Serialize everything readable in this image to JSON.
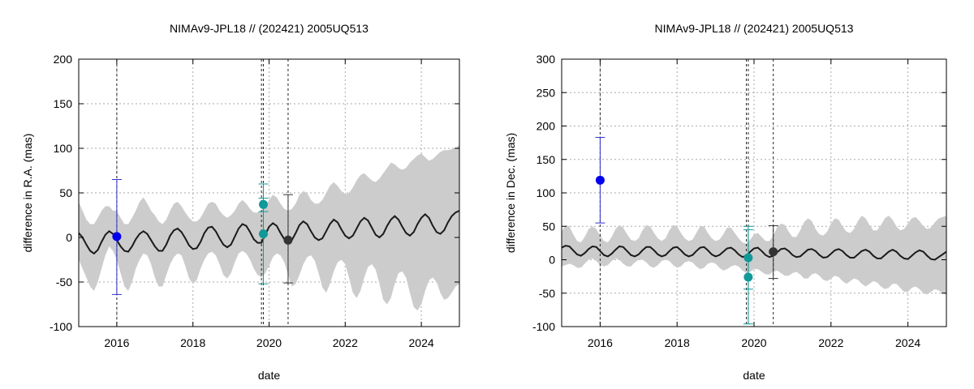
{
  "chart_data": [
    {
      "type": "line",
      "title": "NIMAv9-JPL18 // (202421) 2005UQ513",
      "xlabel": "date",
      "ylabel": "difference in R.A. (mas)",
      "xlim": [
        2015.0,
        2025.0
      ],
      "ylim": [
        -100,
        200
      ],
      "xticks": [
        2016,
        2018,
        2020,
        2022,
        2024
      ],
      "yticks": [
        -100,
        -50,
        0,
        50,
        100,
        150,
        200
      ],
      "grid": true,
      "vlines": [
        2016.0,
        2019.8,
        2019.85,
        2020.5
      ],
      "model_curve": {
        "color": "#1a1a1a",
        "x": [
          2015.0,
          2015.1,
          2015.2,
          2015.3,
          2015.4,
          2015.5,
          2015.6,
          2015.7,
          2015.8,
          2015.9,
          2016.0,
          2016.1,
          2016.2,
          2016.3,
          2016.4,
          2016.5,
          2016.6,
          2016.7,
          2016.8,
          2016.9,
          2017.0,
          2017.1,
          2017.2,
          2017.3,
          2017.4,
          2017.5,
          2017.6,
          2017.7,
          2017.8,
          2017.9,
          2018.0,
          2018.1,
          2018.2,
          2018.3,
          2018.4,
          2018.5,
          2018.6,
          2018.7,
          2018.8,
          2018.9,
          2019.0,
          2019.1,
          2019.2,
          2019.3,
          2019.4,
          2019.5,
          2019.6,
          2019.7,
          2019.8,
          2019.9,
          2020.0,
          2020.1,
          2020.2,
          2020.3,
          2020.4,
          2020.5,
          2020.6,
          2020.7,
          2020.8,
          2020.9,
          2021.0,
          2021.1,
          2021.2,
          2021.3,
          2021.4,
          2021.5,
          2021.6,
          2021.7,
          2021.8,
          2021.9,
          2022.0,
          2022.1,
          2022.2,
          2022.3,
          2022.4,
          2022.5,
          2022.6,
          2022.7,
          2022.8,
          2022.9,
          2023.0,
          2023.1,
          2023.2,
          2023.3,
          2023.4,
          2023.5,
          2023.6,
          2023.7,
          2023.8,
          2023.9,
          2024.0,
          2024.1,
          2024.2,
          2024.3,
          2024.4,
          2024.5,
          2024.6,
          2024.7,
          2024.8,
          2024.9,
          2025.0
        ],
        "y": [
          5,
          0,
          -8,
          -15,
          -18,
          -14,
          -5,
          3,
          7,
          4,
          -3,
          -10,
          -15,
          -16,
          -10,
          -2,
          4,
          7,
          4,
          -3,
          -10,
          -15,
          -15,
          -8,
          2,
          8,
          10,
          6,
          -1,
          -9,
          -13,
          -12,
          -5,
          5,
          11,
          12,
          7,
          -1,
          -8,
          -11,
          -8,
          1,
          10,
          15,
          13,
          6,
          -2,
          -6,
          -6,
          3,
          12,
          16,
          13,
          5,
          -2,
          -4,
          -3,
          5,
          14,
          18,
          15,
          7,
          0,
          -3,
          -1,
          7,
          15,
          20,
          17,
          9,
          2,
          -1,
          2,
          10,
          18,
          22,
          19,
          11,
          3,
          0,
          4,
          13,
          20,
          24,
          20,
          12,
          5,
          2,
          6,
          15,
          22,
          26,
          22,
          13,
          6,
          4,
          8,
          17,
          24,
          28,
          30
        ]
      },
      "uncertainty_band": {
        "color": "#cccccc",
        "upper": [
          40,
          30,
          20,
          15,
          15,
          22,
          30,
          35,
          35,
          30,
          30,
          22,
          15,
          15,
          22,
          30,
          40,
          45,
          38,
          30,
          25,
          18,
          15,
          20,
          30,
          38,
          40,
          35,
          28,
          22,
          18,
          18,
          22,
          30,
          38,
          40,
          38,
          30,
          25,
          22,
          25,
          30,
          38,
          42,
          38,
          32,
          28,
          28,
          30,
          35,
          42,
          48,
          45,
          38,
          32,
          30,
          32,
          38,
          48,
          52,
          50,
          42,
          38,
          38,
          42,
          50,
          58,
          62,
          58,
          52,
          48,
          50,
          56,
          64,
          70,
          72,
          68,
          64,
          62,
          66,
          72,
          78,
          84,
          82,
          78,
          76,
          78,
          84,
          88,
          92,
          94,
          90,
          86,
          88,
          92,
          96,
          98,
          98,
          99,
          100,
          104
        ],
        "lower": [
          -25,
          -35,
          -45,
          -55,
          -60,
          -50,
          -35,
          -20,
          -10,
          -15,
          -25,
          -40,
          -55,
          -60,
          -50,
          -35,
          -25,
          -18,
          -20,
          -30,
          -45,
          -55,
          -55,
          -42,
          -30,
          -22,
          -18,
          -20,
          -32,
          -46,
          -52,
          -48,
          -35,
          -25,
          -18,
          -16,
          -20,
          -30,
          -42,
          -46,
          -40,
          -28,
          -18,
          -15,
          -18,
          -25,
          -35,
          -42,
          -45,
          -40,
          -32,
          -22,
          -18,
          -20,
          -28,
          -42,
          -55,
          -52,
          -42,
          -30,
          -22,
          -20,
          -26,
          -40,
          -56,
          -62,
          -52,
          -38,
          -28,
          -25,
          -30,
          -45,
          -62,
          -68,
          -60,
          -45,
          -33,
          -30,
          -36,
          -52,
          -70,
          -75,
          -68,
          -52,
          -40,
          -38,
          -45,
          -62,
          -78,
          -82,
          -75,
          -60,
          -48,
          -45,
          -50,
          -62,
          -70,
          -68,
          -62,
          -55,
          -52
        ]
      },
      "observations": [
        {
          "x": 2016.0,
          "y": 1,
          "err_low": 65,
          "err_high": 64,
          "color": "#0000ee",
          "err_color": "#3333cc"
        },
        {
          "x": 2019.85,
          "y": 37,
          "err_low": 8,
          "err_high": 23,
          "color": "#119999",
          "err_color": "#119999"
        },
        {
          "x": 2019.85,
          "y": 4,
          "err_low": 56,
          "err_high": 40,
          "color": "#119999",
          "err_color": "#119999"
        },
        {
          "x": 2020.5,
          "y": -3,
          "err_low": 48,
          "err_high": 51,
          "color": "#333333",
          "err_color": "#333333"
        }
      ]
    },
    {
      "type": "line",
      "title": "NIMAv9-JPL18 // (202421) 2005UQ513",
      "xlabel": "date",
      "ylabel": "difference in Dec. (mas)",
      "xlim": [
        2015.0,
        2025.0
      ],
      "ylim": [
        -100,
        300
      ],
      "xticks": [
        2016,
        2018,
        2020,
        2022,
        2024
      ],
      "yticks": [
        -100,
        -50,
        0,
        50,
        100,
        150,
        200,
        250,
        300
      ],
      "grid": true,
      "vlines": [
        2016.0,
        2019.8,
        2019.85,
        2020.5
      ],
      "model_curve": {
        "color": "#1a1a1a",
        "x": [
          2015.0,
          2015.1,
          2015.2,
          2015.3,
          2015.4,
          2015.5,
          2015.6,
          2015.7,
          2015.8,
          2015.9,
          2016.0,
          2016.1,
          2016.2,
          2016.3,
          2016.4,
          2016.5,
          2016.6,
          2016.7,
          2016.8,
          2016.9,
          2017.0,
          2017.1,
          2017.2,
          2017.3,
          2017.4,
          2017.5,
          2017.6,
          2017.7,
          2017.8,
          2017.9,
          2018.0,
          2018.1,
          2018.2,
          2018.3,
          2018.4,
          2018.5,
          2018.6,
          2018.7,
          2018.8,
          2018.9,
          2019.0,
          2019.1,
          2019.2,
          2019.3,
          2019.4,
          2019.5,
          2019.6,
          2019.7,
          2019.8,
          2019.9,
          2020.0,
          2020.1,
          2020.2,
          2020.3,
          2020.4,
          2020.5,
          2020.6,
          2020.7,
          2020.8,
          2020.9,
          2021.0,
          2021.1,
          2021.2,
          2021.3,
          2021.4,
          2021.5,
          2021.6,
          2021.7,
          2021.8,
          2021.9,
          2022.0,
          2022.1,
          2022.2,
          2022.3,
          2022.4,
          2022.5,
          2022.6,
          2022.7,
          2022.8,
          2022.9,
          2023.0,
          2023.1,
          2023.2,
          2023.3,
          2023.4,
          2023.5,
          2023.6,
          2023.7,
          2023.8,
          2023.9,
          2024.0,
          2024.1,
          2024.2,
          2024.3,
          2024.4,
          2024.5,
          2024.6,
          2024.7,
          2024.8,
          2024.9,
          2025.0
        ],
        "y": [
          18,
          21,
          20,
          14,
          8,
          6,
          10,
          16,
          20,
          19,
          13,
          7,
          5,
          9,
          15,
          20,
          19,
          13,
          7,
          5,
          8,
          14,
          19,
          19,
          14,
          8,
          5,
          7,
          13,
          18,
          19,
          14,
          8,
          5,
          7,
          13,
          18,
          19,
          14,
          8,
          5,
          7,
          12,
          17,
          18,
          14,
          8,
          4,
          6,
          12,
          17,
          18,
          13,
          7,
          4,
          6,
          11,
          16,
          17,
          13,
          7,
          4,
          5,
          10,
          15,
          16,
          13,
          7,
          3,
          4,
          9,
          14,
          16,
          13,
          7,
          3,
          3,
          8,
          13,
          15,
          12,
          6,
          2,
          2,
          7,
          12,
          15,
          12,
          6,
          2,
          1,
          6,
          11,
          14,
          12,
          6,
          1,
          0,
          4,
          8,
          12
        ]
      },
      "uncertainty_band": {
        "color": "#cccccc",
        "upper": [
          42,
          52,
          50,
          38,
          28,
          26,
          34,
          46,
          50,
          46,
          36,
          28,
          26,
          34,
          46,
          52,
          48,
          38,
          30,
          28,
          32,
          44,
          52,
          50,
          40,
          32,
          28,
          32,
          44,
          52,
          50,
          40,
          32,
          28,
          30,
          40,
          50,
          50,
          40,
          32,
          28,
          30,
          38,
          48,
          48,
          40,
          32,
          26,
          24,
          30,
          38,
          40,
          34,
          28,
          28,
          36,
          48,
          54,
          52,
          42,
          34,
          34,
          44,
          56,
          62,
          58,
          46,
          38,
          36,
          42,
          54,
          62,
          60,
          50,
          42,
          40,
          46,
          58,
          66,
          62,
          52,
          44,
          44,
          52,
          62,
          66,
          60,
          50,
          44,
          46,
          54,
          62,
          64,
          58,
          50,
          46,
          48,
          56,
          62,
          64,
          66
        ],
        "lower": [
          -10,
          -8,
          -6,
          -8,
          -12,
          -12,
          -6,
          0,
          2,
          -2,
          -8,
          -10,
          -8,
          -2,
          2,
          0,
          -6,
          -10,
          -10,
          -4,
          0,
          0,
          -4,
          -10,
          -12,
          -8,
          -2,
          0,
          -2,
          -8,
          -12,
          -10,
          -4,
          -2,
          -4,
          -10,
          -14,
          -12,
          -6,
          -4,
          -6,
          -12,
          -16,
          -14,
          -10,
          -8,
          -10,
          -16,
          -20,
          -18,
          -14,
          -14,
          -18,
          -22,
          -22,
          -18,
          -16,
          -20,
          -24,
          -24,
          -20,
          -18,
          -22,
          -28,
          -28,
          -22,
          -20,
          -24,
          -30,
          -32,
          -28,
          -24,
          -26,
          -32,
          -36,
          -32,
          -28,
          -30,
          -36,
          -40,
          -36,
          -32,
          -34,
          -40,
          -44,
          -42,
          -36,
          -36,
          -42,
          -48,
          -48,
          -42,
          -40,
          -44,
          -50,
          -52,
          -48,
          -44,
          -46,
          -50,
          -52
        ]
      },
      "observations": [
        {
          "x": 2016.0,
          "y": 119,
          "err_low": 64,
          "err_high": 64,
          "color": "#0000ee",
          "err_color": "#3333cc"
        },
        {
          "x": 2019.85,
          "y": 3,
          "err_low": 47,
          "err_high": 47,
          "color": "#119999",
          "err_color": "#119999"
        },
        {
          "x": 2019.85,
          "y": -26,
          "err_low": 70,
          "err_high": 71,
          "color": "#119999",
          "err_color": "#119999"
        },
        {
          "x": 2020.5,
          "y": 12,
          "err_low": 40,
          "err_high": 39,
          "color": "#333333",
          "err_color": "#333333"
        }
      ]
    }
  ]
}
